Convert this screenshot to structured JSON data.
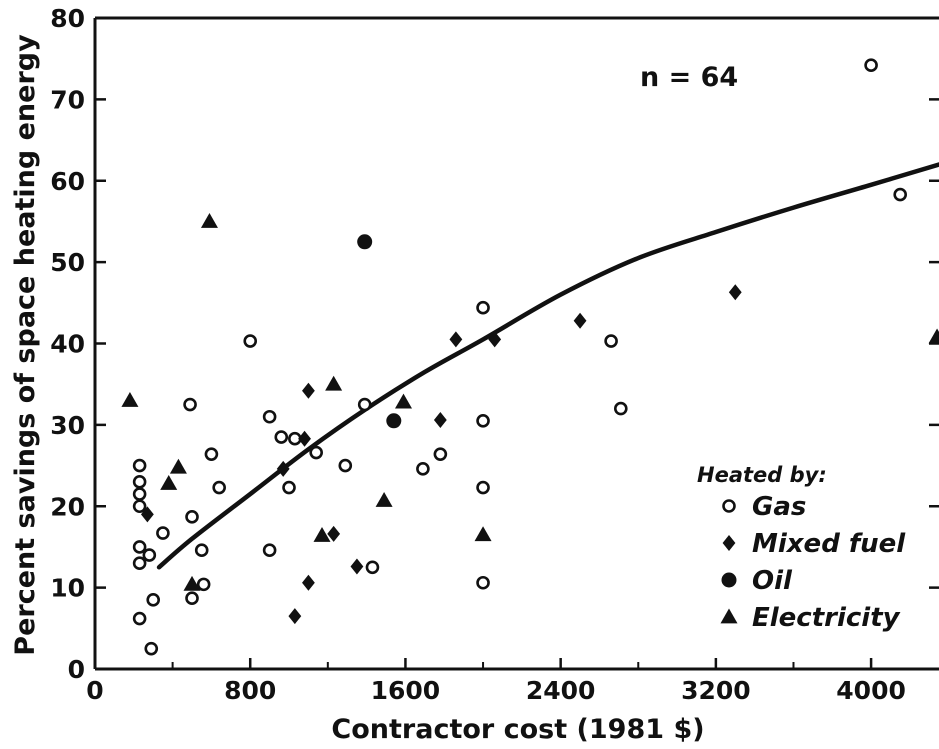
{
  "chart_data": {
    "type": "scatter",
    "xlabel": "Contractor cost (1981 $)",
    "ylabel": "Percent savings of space heating energy",
    "annotation": "n = 64",
    "xlim": [
      0,
      4350
    ],
    "ylim": [
      0,
      80
    ],
    "xticks": [
      0,
      800,
      1600,
      2400,
      3200,
      4000
    ],
    "xtick_labels": [
      "0",
      "800",
      "1600",
      "2400",
      "3200",
      "4000"
    ],
    "yticks": [
      0,
      10,
      20,
      30,
      40,
      50,
      60,
      70,
      80
    ],
    "ytick_labels": [
      "0",
      "10",
      "20",
      "30",
      "40",
      "50",
      "60",
      "70",
      "80"
    ],
    "grid": false,
    "legend_title": "Heated by:",
    "legend_position": "bottom-right",
    "series": [
      {
        "name": "Gas",
        "marker": "open-circle",
        "points": [
          [
            230,
            25
          ],
          [
            230,
            23
          ],
          [
            230,
            21.5
          ],
          [
            230,
            20
          ],
          [
            230,
            15
          ],
          [
            230,
            13
          ],
          [
            230,
            6.2
          ],
          [
            280,
            14
          ],
          [
            290,
            2.5
          ],
          [
            300,
            8.5
          ],
          [
            350,
            16.7
          ],
          [
            490,
            32.5
          ],
          [
            500,
            18.7
          ],
          [
            500,
            8.7
          ],
          [
            550,
            14.6
          ],
          [
            560,
            10.4
          ],
          [
            600,
            26.4
          ],
          [
            640,
            22.3
          ],
          [
            800,
            40.3
          ],
          [
            900,
            31
          ],
          [
            900,
            14.6
          ],
          [
            960,
            28.5
          ],
          [
            1000,
            22.3
          ],
          [
            1030,
            28.3
          ],
          [
            1140,
            26.6
          ],
          [
            1290,
            25
          ],
          [
            1390,
            32.5
          ],
          [
            1430,
            12.5
          ],
          [
            1690,
            24.6
          ],
          [
            1780,
            26.4
          ],
          [
            2000,
            44.4
          ],
          [
            2000,
            30.5
          ],
          [
            2000,
            22.3
          ],
          [
            2000,
            10.6
          ],
          [
            2660,
            40.3
          ],
          [
            2710,
            32
          ],
          [
            4000,
            74.2
          ],
          [
            4150,
            58.3
          ]
        ]
      },
      {
        "name": "Mixed fuel",
        "marker": "filled-diamond",
        "points": [
          [
            270,
            19
          ],
          [
            970,
            24.6
          ],
          [
            1030,
            6.5
          ],
          [
            1080,
            28.3
          ],
          [
            1100,
            34.2
          ],
          [
            1100,
            10.6
          ],
          [
            1230,
            16.6
          ],
          [
            1350,
            12.6
          ],
          [
            1780,
            30.6
          ],
          [
            1860,
            40.5
          ],
          [
            2060,
            40.5
          ],
          [
            2500,
            42.8
          ],
          [
            3300,
            46.3
          ]
        ]
      },
      {
        "name": "Oil",
        "marker": "filled-circle",
        "points": [
          [
            1390,
            52.5
          ],
          [
            1540,
            30.5
          ]
        ]
      },
      {
        "name": "Electricity",
        "marker": "filled-triangle",
        "points": [
          [
            180,
            33
          ],
          [
            380,
            22.8
          ],
          [
            430,
            24.8
          ],
          [
            500,
            10.4
          ],
          [
            590,
            55
          ],
          [
            1170,
            16.4
          ],
          [
            1230,
            35
          ],
          [
            1490,
            20.7
          ],
          [
            1590,
            32.8
          ],
          [
            2000,
            16.5
          ],
          [
            4340,
            40.8
          ]
        ]
      }
    ],
    "fit_curve": [
      [
        330,
        12.5
      ],
      [
        500,
        16
      ],
      [
        800,
        21.5
      ],
      [
        1100,
        27
      ],
      [
        1400,
        32
      ],
      [
        1700,
        36.5
      ],
      [
        2000,
        40.5
      ],
      [
        2400,
        46
      ],
      [
        2800,
        50.5
      ],
      [
        3200,
        53.7
      ],
      [
        3600,
        56.7
      ],
      [
        4000,
        59.5
      ],
      [
        4350,
        62
      ]
    ]
  }
}
